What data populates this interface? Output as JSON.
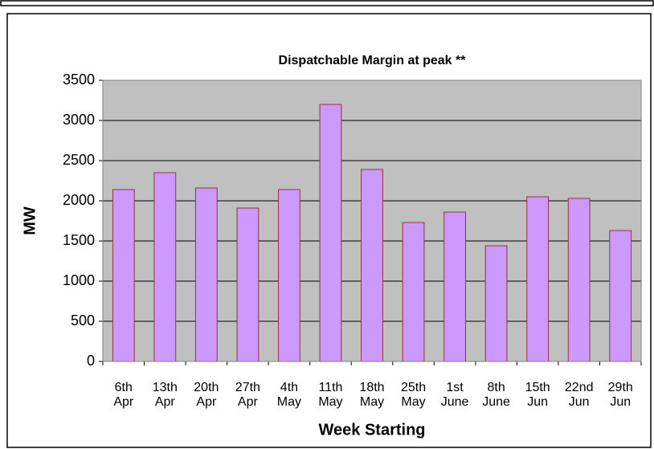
{
  "chart_data": {
    "type": "bar",
    "title": "Dispatchable Margin at peak **",
    "x_label": "Week Starting",
    "y_label": "MW",
    "categories": [
      "6th Apr",
      "13th Apr",
      "20th Apr",
      "27th Apr",
      "4th May",
      "11th May",
      "18th May",
      "25th May",
      "1st June",
      "8th June",
      "15th Jun",
      "22nd Jun",
      "29th Jun"
    ],
    "values": [
      2140,
      2350,
      2160,
      1910,
      2140,
      3200,
      2390,
      1730,
      1860,
      1440,
      2050,
      2030,
      1630
    ],
    "color": "#cc99ff",
    "edge_color": "#993333",
    "plot_background": "#c0c0c0",
    "ylim": [
      0,
      3500
    ],
    "yticks": [
      0,
      500,
      1000,
      1500,
      2000,
      2500,
      3000,
      3500
    ],
    "grid": true
  }
}
